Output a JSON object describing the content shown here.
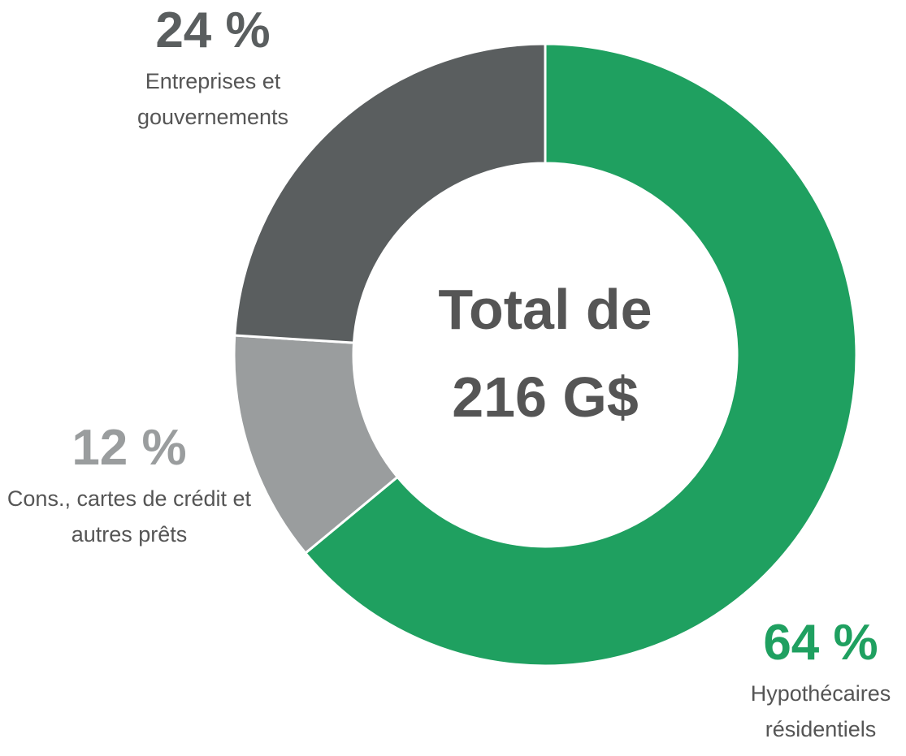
{
  "chart_data": {
    "type": "donut",
    "categories": [
      "Hypothécaires résidentiels",
      "Cons., cartes de crédit et autres prêts",
      "Entreprises et gouvernements"
    ],
    "values": [
      64,
      12,
      24
    ],
    "value_labels": [
      "64 %",
      "12 %",
      "24 %"
    ],
    "colors": [
      "#1fa060",
      "#9a9d9e",
      "#5a5e5f"
    ],
    "center_label": "Total de 216 G$"
  }
}
